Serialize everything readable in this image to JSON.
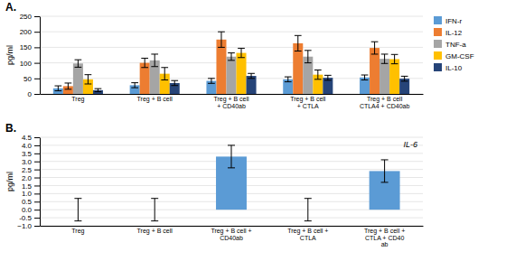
{
  "chart_data": [
    {
      "type": "bar",
      "title": "A.",
      "categories": [
        "Treg",
        "Treg + B cell",
        "Treg + B cell\n+ CD40ab",
        "Treg + B cell\n+ CTLA",
        "Treg + B cell\nCTLA4 + CD40ab"
      ],
      "series": [
        {
          "name": "IFN-r",
          "color": "#5b9bd5",
          "values": [
            18,
            28,
            42,
            47,
            53
          ],
          "errors": [
            8,
            8,
            8,
            8,
            8
          ]
        },
        {
          "name": "IL-12",
          "color": "#ed7d31",
          "values": [
            25,
            100,
            175,
            163,
            148
          ],
          "errors": [
            10,
            15,
            25,
            25,
            20
          ]
        },
        {
          "name": "TNF-a",
          "color": "#a5a5a5",
          "values": [
            98,
            108,
            120,
            120,
            113
          ],
          "errors": [
            12,
            20,
            12,
            20,
            15
          ]
        },
        {
          "name": "GM-CSF",
          "color": "#ffc000",
          "values": [
            47,
            65,
            132,
            62,
            112
          ],
          "errors": [
            15,
            20,
            15,
            15,
            15
          ]
        },
        {
          "name": "IL-10",
          "color": "#264478",
          "values": [
            12,
            35,
            58,
            52,
            49
          ],
          "errors": [
            5,
            8,
            8,
            8,
            8
          ]
        }
      ],
      "ylabel": "pg/ml",
      "ylim": [
        0,
        250
      ],
      "yticks": [
        0,
        50,
        100,
        150,
        200,
        250
      ],
      "legend": "right"
    },
    {
      "type": "bar",
      "title": "B.",
      "annotation": "IL-6",
      "categories": [
        "Treg",
        "Treg + B cell",
        "Treg + B cell +\nCD40ab",
        "Treg + B cell +\nCTLA",
        "Treg + B cell +\nCTLA + CD40\nab"
      ],
      "values": [
        0.0,
        0.0,
        3.3,
        0.0,
        2.4
      ],
      "errors": [
        0.7,
        0.7,
        0.7,
        0.7,
        0.7
      ],
      "color": "#5b9bd5",
      "ylabel": "pg/ml",
      "ylim": [
        -1.0,
        4.5
      ],
      "yticks": [
        {
          "value": -1.0,
          "label": "−1.0"
        },
        -0.5,
        {
          "value": 0,
          "label": "0.0"
        },
        0.5,
        {
          "value": 1,
          "label": "1.0"
        },
        1.5,
        {
          "value": 2,
          "label": "2.0"
        },
        2.5,
        {
          "value": 3,
          "label": "3.0"
        },
        3.5,
        {
          "value": 4,
          "label": "4.0"
        },
        4.5
      ]
    }
  ]
}
